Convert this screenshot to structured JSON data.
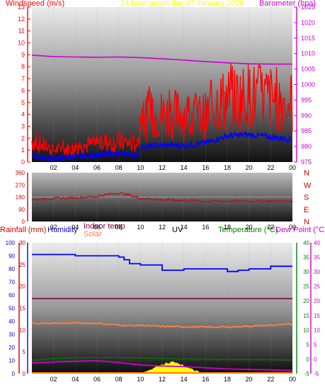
{
  "panel1": {
    "left_title": "Windspeed (m/s)",
    "center_title": "24 hour graph day   07 January 2026",
    "right_title": "Barometer (hpa)"
  },
  "panel3": {
    "label_rainfall": "Rainfall (mm)",
    "label_humidity": "Humidity",
    "label_indoor": "Indoor temp",
    "label_solar": "Solar",
    "label_uv": "UV",
    "label_temperature": "Temperature (°C)",
    "label_dewpoint": "Dew Point (°C)"
  },
  "colors": {
    "wind": "#ff0000",
    "wind_avg": "#0000ff",
    "barometer": "#cc00cc",
    "direction": "#cc0000",
    "humidity": "#0000ff",
    "indoor": "#800040",
    "solar": "#ff8040",
    "temperature": "#008000",
    "dewpoint": "#cc00cc",
    "uv": "#ffff00"
  },
  "chart_data": [
    {
      "type": "line",
      "x_ticks": [
        "02",
        "04",
        "06",
        "08",
        "10",
        "12",
        "14",
        "16",
        "18",
        "20",
        "22",
        "00"
      ],
      "y_left_ticks": [
        "0",
        "1",
        "2",
        "3",
        "4",
        "5",
        "6",
        "7",
        "8",
        "9",
        "10",
        "11",
        "12",
        "13"
      ],
      "y_right_ticks": [
        "975",
        "980",
        "985",
        "990",
        "995",
        "1000",
        "1005",
        "1010",
        "1015",
        "1020",
        "1025"
      ],
      "ylim_left": [
        0,
        13
      ],
      "ylim_right": [
        975,
        1025
      ],
      "series": [
        {
          "name": "Windspeed (m/s)",
          "axis": "left",
          "x": [
            0,
            2,
            4,
            6,
            8,
            9.8,
            10,
            12,
            14,
            16,
            17,
            18,
            20,
            22,
            24
          ],
          "values": [
            1.8,
            1.0,
            1.2,
            1.6,
            1.7,
            1.5,
            3.8,
            4.0,
            4.0,
            3.8,
            5.0,
            5.2,
            5.5,
            5.3,
            5.0
          ]
        },
        {
          "name": "Wind average",
          "axis": "left",
          "x": [
            0,
            2,
            4,
            6,
            8,
            9.8,
            10,
            12,
            14,
            16,
            18,
            20,
            22,
            24
          ],
          "values": [
            0.5,
            0.3,
            0.4,
            0.6,
            0.7,
            0.6,
            1.3,
            1.4,
            1.4,
            1.6,
            2.2,
            2.3,
            2.1,
            1.9
          ]
        },
        {
          "name": "Barometer (hpa)",
          "axis": "right",
          "x": [
            0,
            2,
            4,
            6,
            8,
            10,
            12,
            14,
            16,
            18,
            20,
            22,
            24
          ],
          "values": [
            1009.5,
            1009.0,
            1008.9,
            1008.8,
            1008.9,
            1008.7,
            1008.3,
            1007.9,
            1007.4,
            1007.0,
            1006.7,
            1006.6,
            1006.6
          ]
        }
      ]
    },
    {
      "type": "line",
      "x_ticks": [
        "02",
        "04",
        "06",
        "08",
        "10",
        "12",
        "14",
        "16",
        "18",
        "20",
        "22",
        "00"
      ],
      "y_left_ticks": [
        "0",
        "90",
        "180",
        "270",
        "360"
      ],
      "y_right_ticks": [
        "N",
        "W",
        "S",
        "E",
        "N"
      ],
      "ylim": [
        0,
        360
      ],
      "series": [
        {
          "name": "Wind direction",
          "x": [
            0,
            2,
            4,
            6,
            7,
            8,
            9,
            10,
            12,
            14,
            16,
            18,
            20,
            22,
            24
          ],
          "values": [
            160,
            170,
            175,
            185,
            200,
            210,
            195,
            170,
            160,
            155,
            150,
            150,
            152,
            150,
            150
          ]
        }
      ]
    },
    {
      "type": "line",
      "x_ticks": [
        "02",
        "04",
        "06",
        "08",
        "10",
        "12",
        "14",
        "16",
        "18",
        "20",
        "22",
        "00"
      ],
      "y_left_ticks": [
        "0",
        "10",
        "20",
        "30",
        "40",
        "50",
        "60",
        "70",
        "80",
        "90",
        "100"
      ],
      "y_rain_ticks": [
        "0",
        "5",
        "10",
        "15",
        "20",
        "25",
        "30"
      ],
      "y_right_ticks": [
        "-5",
        "0",
        "5",
        "10",
        "15",
        "20",
        "25",
        "30",
        "35",
        "40"
      ],
      "humidity_lim": [
        0,
        100
      ],
      "temp_lim": [
        -5,
        40
      ],
      "series": [
        {
          "name": "Humidity",
          "x": [
            0,
            2,
            4,
            6,
            7,
            8,
            8.5,
            9,
            10,
            11,
            12,
            13,
            14,
            16,
            17,
            18,
            19,
            20,
            22,
            24
          ],
          "values": [
            91,
            91,
            90,
            90,
            90,
            89,
            87,
            84,
            83,
            83,
            79,
            79,
            80,
            80,
            80,
            78,
            79,
            80,
            82,
            82
          ]
        },
        {
          "name": "Indoor temp",
          "x": [
            0,
            24
          ],
          "values": [
            20.8,
            20.8
          ]
        },
        {
          "name": "Solar",
          "x": [
            0,
            2,
            4,
            6,
            8,
            9,
            10,
            12,
            14,
            16,
            18,
            20,
            22,
            24
          ],
          "values": [
            12.3,
            12.3,
            12.4,
            12.3,
            11.7,
            11.5,
            11.6,
            11.2,
            11.1,
            11.0,
            11.0,
            11.3,
            11.6,
            12.0
          ]
        },
        {
          "name": "Temperature (°C)",
          "x": [
            0,
            2,
            4,
            6,
            8,
            10,
            12,
            14,
            16,
            18,
            20,
            22,
            24
          ],
          "values": [
            -0.4,
            0.2,
            0.4,
            0.5,
            0.5,
            0.3,
            0.2,
            0.1,
            0.0,
            -0.1,
            -0.1,
            -0.2,
            -0.3
          ]
        },
        {
          "name": "Dew Point (°C)",
          "x": [
            0,
            2,
            4,
            6,
            8,
            10,
            12,
            14,
            16,
            18,
            20,
            22,
            24
          ],
          "values": [
            -1.3,
            -1.0,
            -0.8,
            -0.6,
            -1.2,
            -2.0,
            -2.4,
            -2.6,
            -3.0,
            -3.4,
            -3.6,
            -3.7,
            -3.9
          ]
        },
        {
          "name": "UV",
          "x": [
            9.8,
            10.5,
            11,
            11.5,
            12,
            12.5,
            13,
            13.5,
            14,
            14.5,
            15,
            15.8
          ],
          "values": [
            0,
            0.7,
            1.5,
            2.4,
            3.1,
            3.5,
            4.0,
            3.2,
            2.6,
            1.8,
            1.0,
            0
          ]
        }
      ]
    }
  ]
}
